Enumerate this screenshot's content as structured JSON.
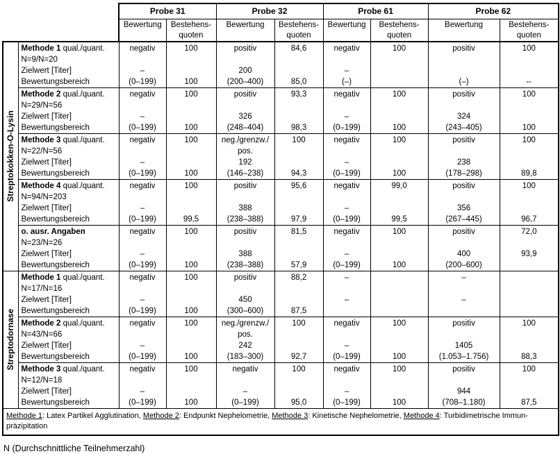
{
  "table": {
    "probes": [
      "Probe 31",
      "Probe 32",
      "Probe 61",
      "Probe 62"
    ],
    "sub": [
      "Bewertung",
      "Bestehens-\nquoten"
    ],
    "groups": [
      {
        "label": "Streptokokken-O-Lysin",
        "rows": [
          {
            "label": {
              "bold": "Methode 1",
              "rest": " qual./quant.",
              "lines": [
                "N=9/N=20",
                "Zielwert [Titer]",
                "Bewertungsbereich"
              ]
            },
            "cols": [
              [
                "negativ",
                "",
                "–",
                "(0–199)"
              ],
              [
                "100",
                "",
                "",
                "100"
              ],
              [
                "positiv",
                "",
                "200",
                "(200–400)"
              ],
              [
                "84,6",
                "",
                "",
                "85,0"
              ],
              [
                "negativ",
                "",
                "–",
                "(–)"
              ],
              [
                "100",
                "",
                "",
                ""
              ],
              [
                "positiv",
                "",
                "",
                "(–)"
              ],
              [
                "100",
                "",
                "",
                "--"
              ]
            ]
          },
          {
            "label": {
              "bold": "Methode 2",
              "rest": " qual./quant.",
              "lines": [
                "N=29/N=56",
                "Zielwert [Titer]",
                "Bewertungsbereich"
              ]
            },
            "cols": [
              [
                "negativ",
                "",
                "–",
                "(0–199)"
              ],
              [
                "100",
                "",
                "",
                "100"
              ],
              [
                "positiv",
                "",
                "326",
                "(248–404)"
              ],
              [
                "93,3",
                "",
                "",
                "98,3"
              ],
              [
                "negativ",
                "",
                "–",
                "(0–199)"
              ],
              [
                "100",
                "",
                "",
                "100"
              ],
              [
                "positiv",
                "",
                "324",
                "(243–405)"
              ],
              [
                "100",
                "",
                "",
                "100"
              ]
            ]
          },
          {
            "label": {
              "bold": "Methode 3",
              "rest": " qual./quant.",
              "lines": [
                "N=22/N=56",
                "Zielwert [Titer]",
                "Bewertungsbereich"
              ]
            },
            "cols": [
              [
                "negativ",
                "",
                "–",
                "(0–199)"
              ],
              [
                "100",
                "",
                "",
                "100"
              ],
              [
                "neg./grenzw./",
                "pos.",
                "192",
                "(146–238)"
              ],
              [
                "100",
                "",
                "",
                "94,3"
              ],
              [
                "negativ",
                "",
                "–",
                "(0–199)"
              ],
              [
                "100",
                "",
                "",
                "100"
              ],
              [
                "positiv",
                "",
                "238",
                "(178–298)"
              ],
              [
                "100",
                "",
                "",
                "89,8"
              ]
            ]
          },
          {
            "label": {
              "bold": "Methode 4",
              "rest": " qual./quant.",
              "lines": [
                "N=94/N=203",
                "Zielwert [Titer]",
                "Bewertungsbereich"
              ]
            },
            "cols": [
              [
                "negativ",
                "",
                "–",
                "(0–199)"
              ],
              [
                "100",
                "",
                "",
                "99,5"
              ],
              [
                "positiv",
                "",
                "388",
                "(238–388)"
              ],
              [
                "95,6",
                "",
                "",
                "97,9"
              ],
              [
                "negativ",
                "",
                "–",
                "(0–199)"
              ],
              [
                "99,0",
                "",
                "",
                "99,5"
              ],
              [
                "positiv",
                "",
                "356",
                "(267–445)"
              ],
              [
                "100",
                "",
                "",
                "96,7"
              ]
            ]
          },
          {
            "label": {
              "bold": "o. ausr. Angaben",
              "rest": "",
              "lines": [
                "N=23/N=26",
                "Zielwert [Titer]",
                "Bewertungsbereich"
              ]
            },
            "cols": [
              [
                "negativ",
                "",
                "–",
                "(0–199)"
              ],
              [
                "100",
                "",
                "",
                "100"
              ],
              [
                "positiv",
                "",
                "388",
                "(238–388)"
              ],
              [
                "81,5",
                "",
                "",
                "57,9"
              ],
              [
                "negativ",
                "",
                "–",
                "(0–199)"
              ],
              [
                "100",
                "",
                "",
                "100"
              ],
              [
                "positiv",
                "",
                "400",
                "(200–600)"
              ],
              [
                "72,0",
                "",
                "93,9",
                ""
              ]
            ]
          }
        ]
      },
      {
        "label": "Streptodornase",
        "rows": [
          {
            "label": {
              "bold": "Methode 1",
              "rest": " qual./quant.",
              "lines": [
                "N=17/N=16",
                "Zielwert [Titer]",
                "Bewertungsbereich"
              ]
            },
            "cols": [
              [
                "negativ",
                "",
                "–",
                "(0–199)"
              ],
              [
                "100",
                "",
                "",
                "100"
              ],
              [
                "positiv",
                "",
                "450",
                "(300–600)"
              ],
              [
                "88,2",
                "",
                "",
                "87,5"
              ],
              [
                "–",
                "",
                "–",
                ""
              ],
              [
                "",
                "",
                "",
                ""
              ],
              [
                "–",
                "",
                "–",
                ""
              ],
              [
                "",
                "",
                "",
                ""
              ]
            ]
          },
          {
            "label": {
              "bold": "Methode 2",
              "rest": " qual./quant.",
              "lines": [
                "N=43/N=66",
                "Zielwert [Titer]",
                "Bewertungsbereich"
              ]
            },
            "cols": [
              [
                "negativ",
                "",
                "–",
                "(0–199)"
              ],
              [
                "100",
                "",
                "",
                "100"
              ],
              [
                "neg./grenzw./",
                "pos.",
                "242",
                "(183–300)"
              ],
              [
                "100",
                "",
                "",
                "92,7"
              ],
              [
                "negativ",
                "",
                "–",
                "(0–199)"
              ],
              [
                "100",
                "",
                "",
                "100"
              ],
              [
                "positiv",
                "",
                "1405",
                "(1.053–1.756)"
              ],
              [
                "100",
                "",
                "",
                "88,3"
              ]
            ]
          },
          {
            "label": {
              "bold": "Methode 3",
              "rest": " qual./quant.",
              "lines": [
                "N=12/N=18",
                "Zielwert [Titer]",
                "Bewertungsbereich"
              ]
            },
            "cols": [
              [
                "negativ",
                "",
                "–",
                "(0–199)"
              ],
              [
                "100",
                "",
                "",
                "100"
              ],
              [
                "negativ",
                "",
                "–",
                "(0–199)"
              ],
              [
                "100",
                "",
                "",
                "95,0"
              ],
              [
                "negativ",
                "",
                "–",
                "(0–199)"
              ],
              [
                "100",
                "",
                "",
                "100"
              ],
              [
                "positiv",
                "",
                "944",
                "(708–1.180)"
              ],
              [
                "100",
                "",
                "",
                "87,5"
              ]
            ]
          }
        ]
      }
    ],
    "legend": [
      {
        "u": "Methode 1",
        "t": ": Latex Partikel Agglutination, "
      },
      {
        "u": "Methode 2",
        "t": ": Endpunkt Nephelometrie, "
      },
      {
        "u": "Methode 3",
        "t": ": Kinetische Nephelometrie, "
      },
      {
        "u": "Methode 4",
        "t": ": Turbidimetrische Immun-"
      }
    ],
    "legend_line2": "präzipitation"
  },
  "note": "N (Durchschnittliche Teilnehmerzahl)"
}
